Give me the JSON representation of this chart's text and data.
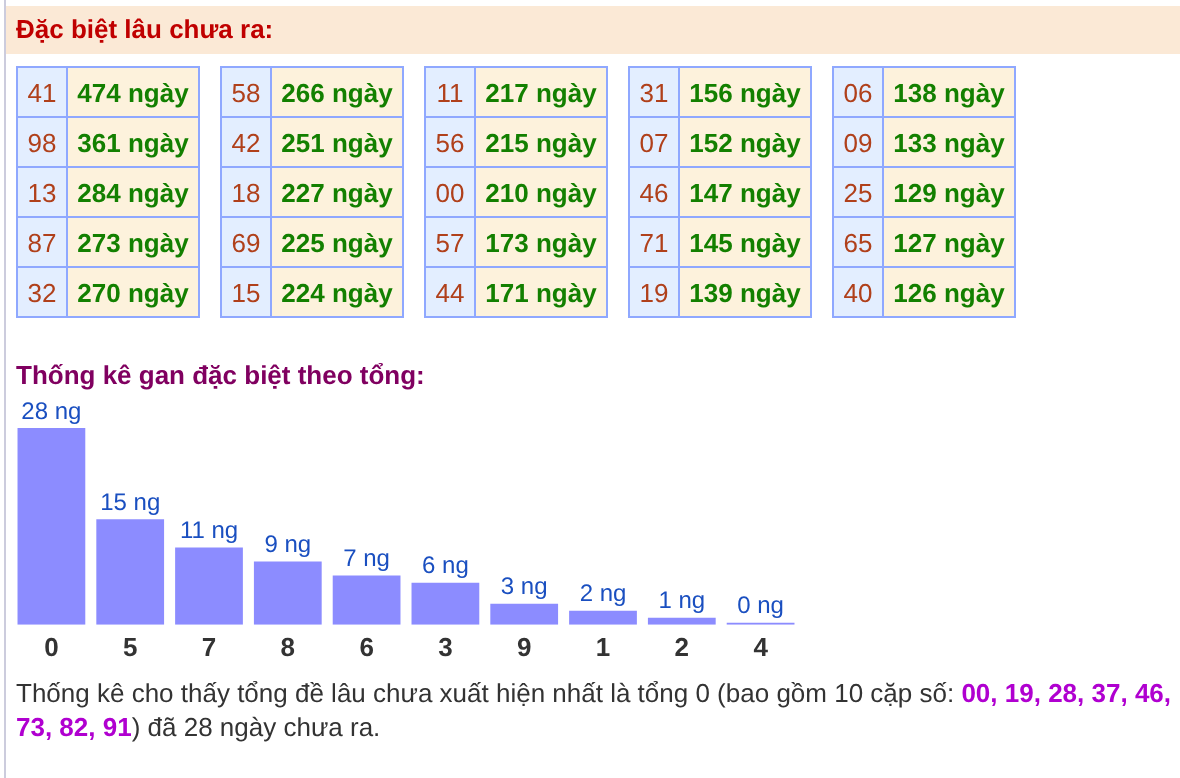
{
  "chart_data": [
    {
      "type": "other",
      "title": "Đặc biệt lâu chưa ra:",
      "categories": [
        "41",
        "98",
        "13",
        "87",
        "32",
        "58",
        "42",
        "18",
        "69",
        "15",
        "11",
        "56",
        "00",
        "57",
        "44",
        "31",
        "07",
        "46",
        "71",
        "19",
        "06",
        "09",
        "25",
        "65",
        "40"
      ],
      "value_labels": [
        "474 ngày",
        "361 ngày",
        "284 ngày",
        "273 ngày",
        "270 ngày",
        "266 ngày",
        "251 ngày",
        "227 ngày",
        "225 ngày",
        "224 ngày",
        "217 ngày",
        "215 ngày",
        "210 ngày",
        "173 ngày",
        "171 ngày",
        "156 ngày",
        "152 ngày",
        "147 ngày",
        "145 ngày",
        "139 ngày",
        "138 ngày",
        "133 ngày",
        "129 ngày",
        "127 ngày",
        "126 ngày"
      ]
    },
    {
      "type": "bar",
      "title": "Thống kê gan đặc biệt theo tổng:",
      "categories": [
        "0",
        "5",
        "7",
        "8",
        "6",
        "3",
        "9",
        "1",
        "2",
        "4"
      ],
      "values": [
        28,
        15,
        11,
        9,
        7,
        6,
        3,
        2,
        1,
        0
      ],
      "value_labels": [
        "28 ng",
        "15 ng",
        "11 ng",
        "9 ng",
        "7 ng",
        "6 ng",
        "3 ng",
        "2 ng",
        "1 ng",
        "0 ng"
      ],
      "color": "#8c8cff",
      "tick_labels": "x",
      "grid": false,
      "legend": false,
      "annotations": [
        "Thống kê cho thấy tổng đề lâu chưa xuất hiện nhất là tổng 0 (bao gồm 10 cặp số: ",
        "00, 19, 28, 37, 46, 73, 82, 91",
        ") đã 28 ngày chưa ra."
      ]
    }
  ]
}
